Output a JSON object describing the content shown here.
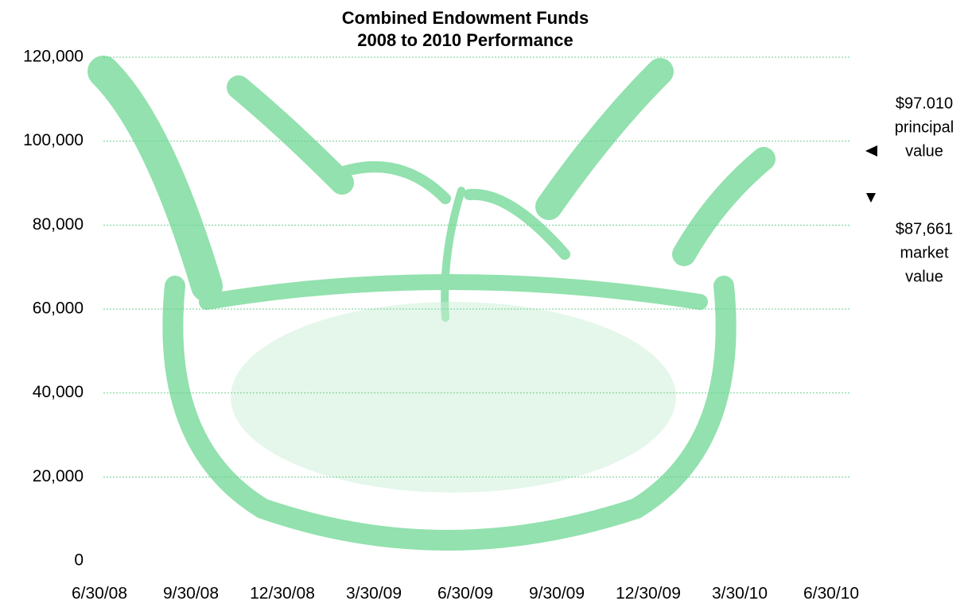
{
  "chart_data": {
    "type": "line",
    "title": [
      "Combined Endowment Funds",
      "2008 to 2010 Performance"
    ],
    "categories": [
      "6/30/08",
      "9/30/08",
      "12/30/08",
      "3/30/09",
      "6/30/09",
      "9/30/09",
      "12/30/09",
      "3/30/10",
      "6/30/10"
    ],
    "ylim": [
      0,
      120000
    ],
    "yticks": [
      0,
      {
        "value": 20000,
        "label": "20,000"
      },
      {
        "value": 40000,
        "label": "40,000"
      },
      {
        "value": 60000,
        "label": "60,000"
      },
      {
        "value": 80000,
        "label": "80,000"
      },
      {
        "value": 100000,
        "label": "100,000"
      },
      {
        "value": 120000,
        "label": "120,000"
      }
    ],
    "grid": true,
    "annotations": [
      [
        "$97.010",
        "principal",
        "value"
      ],
      [
        "$87,661",
        "market",
        "value"
      ]
    ]
  }
}
